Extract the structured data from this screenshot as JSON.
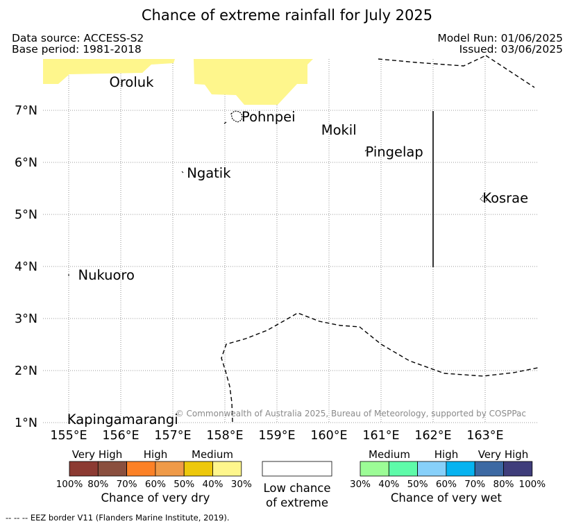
{
  "title": "Chance of extreme rainfall for July 2025",
  "meta": {
    "data_source": "Data source: ACCESS-S2",
    "base_period": "Base period: 1981-2018",
    "model_run": "Model Run: 01/06/2025",
    "issued": "Issued: 03/06/2025"
  },
  "map": {
    "lon_range": [
      154.5,
      164.0
    ],
    "lat_range": [
      0.95,
      8.0
    ],
    "lon_ticks": [
      155,
      156,
      157,
      158,
      159,
      160,
      161,
      162,
      163
    ],
    "lon_tick_labels": [
      "155°E",
      "156°E",
      "157°E",
      "158°E",
      "159°E",
      "160°E",
      "161°E",
      "162°E",
      "163°E"
    ],
    "lat_ticks": [
      1,
      2,
      3,
      4,
      5,
      6,
      7
    ],
    "lat_tick_labels": [
      "1°N",
      "2°N",
      "3°N",
      "4°N",
      "5°N",
      "6°N",
      "7°N"
    ],
    "grid": "dotted",
    "places": [
      {
        "name": "Oroluk",
        "lon": 155.78,
        "lat": 7.55
      },
      {
        "name": "Pohnpei",
        "lon": 158.32,
        "lat": 6.88
      },
      {
        "name": "Mokil",
        "lon": 159.85,
        "lat": 6.63
      },
      {
        "name": "Pingelap",
        "lon": 160.7,
        "lat": 6.21
      },
      {
        "name": "Ngatik",
        "lon": 157.27,
        "lat": 5.8
      },
      {
        "name": "Kosrae",
        "lon": 162.95,
        "lat": 5.32
      },
      {
        "name": "Nukuoro",
        "lon": 155.18,
        "lat": 3.84
      },
      {
        "name": "Kapingamarangi",
        "lon": 154.97,
        "lat": 1.07
      }
    ],
    "dry_area_category": "30%",
    "copyright": "© Commonwealth of Australia 2025, Bureau of Meteorology, supported by COSPPac"
  },
  "legend": {
    "dry": {
      "colors": [
        "#8c3a32",
        "#8a4f3e",
        "#fc8126",
        "#ef9a48",
        "#edc80b",
        "#fef68c"
      ],
      "band_labels": [
        "Very High",
        "High",
        "Medium"
      ],
      "tick_labels": [
        "100%",
        "80%",
        "70%",
        "60%",
        "50%",
        "40%",
        "30%"
      ],
      "title": "Chance of very dry"
    },
    "low": {
      "color": "#ffffff",
      "title_line1": "Low chance",
      "title_line2": "of extreme"
    },
    "wet": {
      "colors": [
        "#9cfc96",
        "#5efba9",
        "#87d0fa",
        "#07b3f0",
        "#3c69a3",
        "#3f3d7b"
      ],
      "band_labels": [
        "Medium",
        "High",
        "Very High"
      ],
      "tick_labels": [
        "30%",
        "40%",
        "50%",
        "60%",
        "70%",
        "80%",
        "100%"
      ],
      "title": "Chance of very wet"
    }
  },
  "footer": "-- -- -- EEZ border V11 (Flanders Marine Institute, 2019)."
}
